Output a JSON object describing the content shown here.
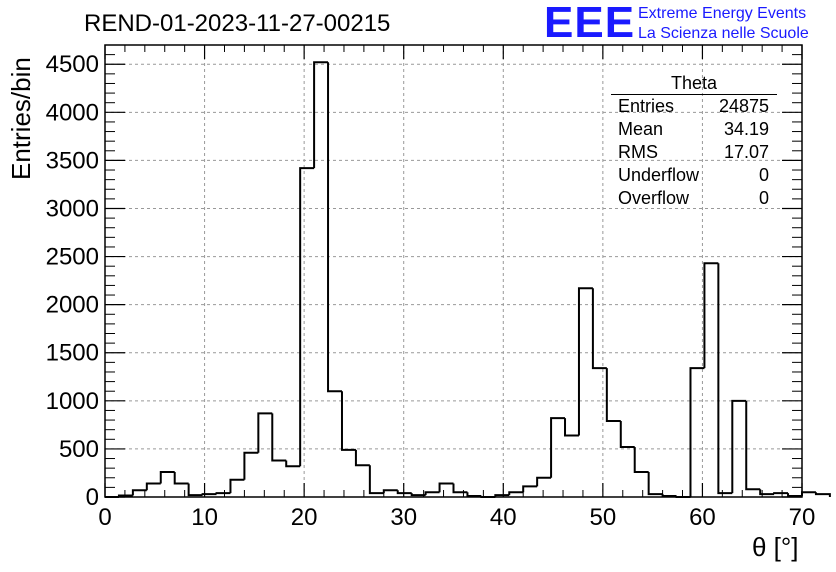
{
  "title": "REND-01-2023-11-27-00215",
  "logo": {
    "mark": "EEE",
    "line1": "Extreme Energy Events",
    "line2": "La Scienza nelle Scuole",
    "color": "#1a1aff"
  },
  "stats": {
    "name": "Theta",
    "rows": [
      {
        "label": "Entries",
        "value": "24875"
      },
      {
        "label": "Mean",
        "value": "34.19"
      },
      {
        "label": "RMS",
        "value": "17.07"
      },
      {
        "label": "Underflow",
        "value": "0"
      },
      {
        "label": "Overflow",
        "value": "0"
      }
    ]
  },
  "chart_data": {
    "type": "bar",
    "style": "step-histogram",
    "title": "REND-01-2023-11-27-00215",
    "xlabel": "θ [°]",
    "ylabel": "Entries/bin",
    "xlim": [
      0,
      70
    ],
    "ylim": [
      0,
      4700
    ],
    "bin_width": 1.4,
    "xticks": [
      0,
      10,
      20,
      30,
      40,
      50,
      60,
      70
    ],
    "yticks": [
      0,
      500,
      1000,
      1500,
      2000,
      2500,
      3000,
      3500,
      4000,
      4500
    ],
    "grid": true,
    "line_color": "#000000",
    "values": [
      0,
      15,
      70,
      140,
      260,
      140,
      20,
      30,
      40,
      180,
      460,
      870,
      380,
      320,
      3420,
      4520,
      1100,
      490,
      330,
      40,
      70,
      40,
      20,
      50,
      140,
      50,
      10,
      0,
      20,
      50,
      110,
      200,
      820,
      640,
      2170,
      1340,
      790,
      520,
      260,
      30,
      10,
      0,
      1340,
      2430,
      40,
      1000,
      80,
      30,
      40,
      10,
      50,
      30
    ]
  }
}
